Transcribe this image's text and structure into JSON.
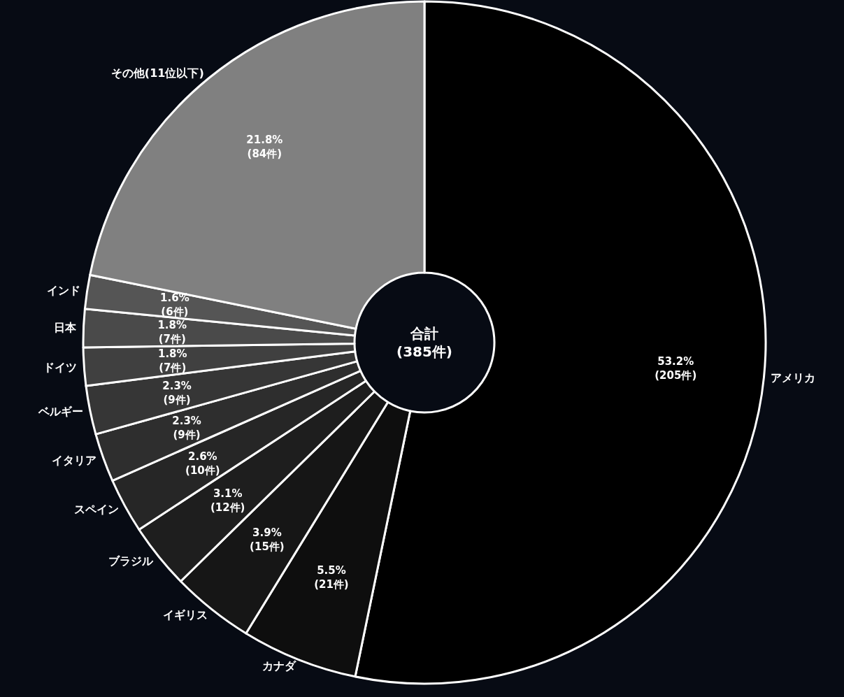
{
  "chart_data": {
    "type": "donut",
    "categories": [
      "アメリカ",
      "カナダ",
      "イギリス",
      "ブラジル",
      "スペイン",
      "イタリア",
      "ベルギー",
      "ドイツ",
      "日本",
      "インド",
      "その他(11位以下)"
    ],
    "values": [
      53.2,
      5.5,
      3.9,
      3.1,
      2.6,
      2.3,
      2.3,
      1.8,
      1.8,
      1.6,
      21.8
    ],
    "value_labels": [
      "53.2%\n(205件)",
      "5.5%\n(21件)",
      "3.9%\n(15件)",
      "3.1%\n(12件)",
      "2.6%\n(10件)",
      "2.3%\n(9件)",
      "2.3%\n(9件)",
      "1.8%\n(7件)",
      "1.8%\n(7件)",
      "1.6%\n(6件)",
      "21.8%\n(84件)"
    ],
    "colors": [
      "#000000",
      "#0e0e0e",
      "#161616",
      "#1e1e1e",
      "#262626",
      "#2e2e2e",
      "#363636",
      "#404040",
      "#4a4a4a",
      "#555555",
      "#808080"
    ],
    "annotations": [
      "合計\n(385件)"
    ],
    "legend": false
  }
}
